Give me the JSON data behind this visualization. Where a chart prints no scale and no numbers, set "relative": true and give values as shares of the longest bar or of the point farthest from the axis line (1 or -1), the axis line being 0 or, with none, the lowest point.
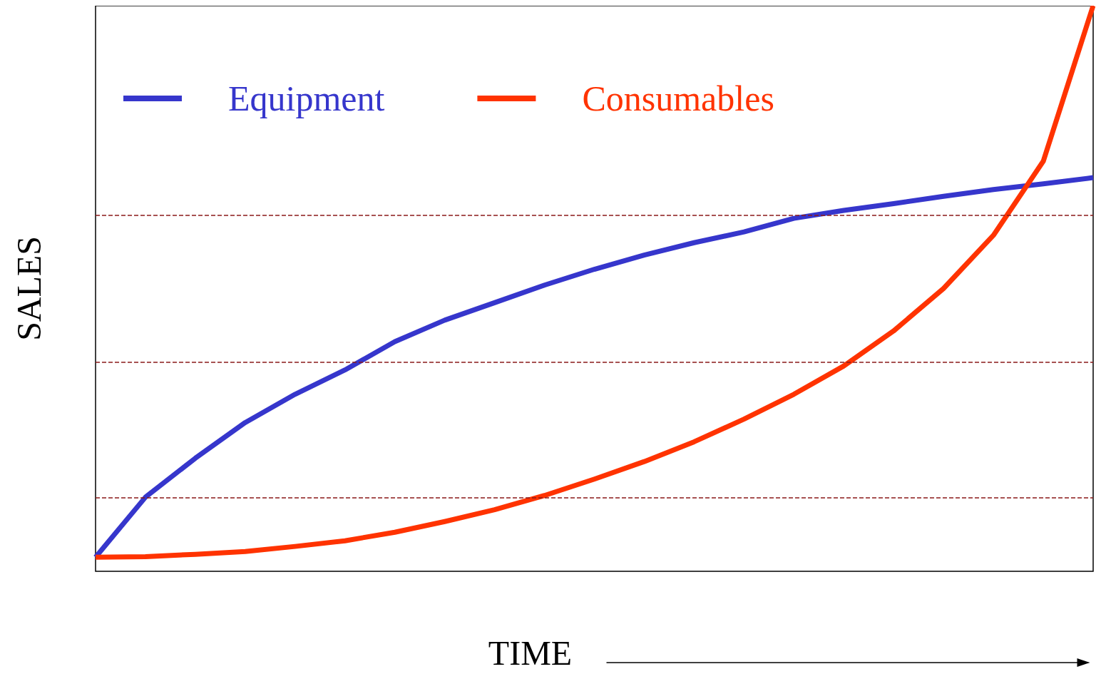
{
  "chart_data": {
    "type": "line",
    "xlabel": "TIME",
    "ylabel": "SALES",
    "relative": true,
    "grid": false,
    "legend": "top left",
    "line_style": "solid",
    "marker": "none",
    "categories": [
      null,
      null,
      null,
      null,
      null,
      null,
      null,
      null,
      null,
      null,
      null,
      null,
      null,
      null,
      null,
      null,
      null,
      null,
      null,
      null,
      null
    ],
    "series": [
      {
        "name": "Equipment",
        "color": "#3636cc",
        "values": [
          0.025,
          0.131,
          0.2,
          0.263,
          0.313,
          0.356,
          0.406,
          0.444,
          0.475,
          0.506,
          0.534,
          0.559,
          0.581,
          0.6,
          0.624,
          0.638,
          0.65,
          0.663,
          0.675,
          0.685,
          0.696
        ]
      },
      {
        "name": "Consumables",
        "color": "#ff3300",
        "values": [
          0.025,
          0.026,
          0.03,
          0.035,
          0.044,
          0.054,
          0.069,
          0.088,
          0.109,
          0.134,
          0.163,
          0.194,
          0.229,
          0.269,
          0.313,
          0.363,
          0.425,
          0.5,
          0.594,
          0.725,
          1.0
        ]
      }
    ],
    "ref_lines": [
      {
        "axis": "y",
        "value": 0.131,
        "color": "#8b1a1a",
        "line_style": "dashed"
      },
      {
        "axis": "y",
        "value": 0.366,
        "color": "#8b1a1a",
        "line_style": "dashed"
      },
      {
        "axis": "y",
        "value": 0.626,
        "color": "#8b1a1a",
        "line_style": "dashed"
      }
    ]
  }
}
